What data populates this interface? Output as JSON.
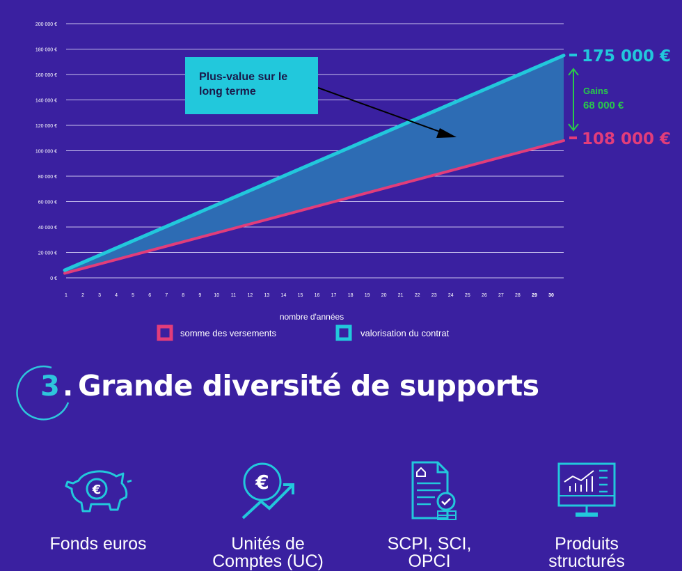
{
  "chart_data": {
    "type": "line",
    "xlabel": "nombre d'années",
    "ylabel": "",
    "ylim": [
      0,
      200000
    ],
    "y_ticks": [
      "0 €",
      "20 000 €",
      "40 000 €",
      "60 000 €",
      "80 000 €",
      "100 000 €",
      "120 000 €",
      "140 000 €",
      "160 000 €",
      "180 000 €",
      "200 000 €"
    ],
    "x": [
      1,
      2,
      3,
      4,
      5,
      6,
      7,
      8,
      9,
      10,
      11,
      12,
      13,
      14,
      15,
      16,
      17,
      18,
      19,
      20,
      21,
      22,
      23,
      24,
      25,
      26,
      27,
      28,
      29,
      30
    ],
    "series": [
      {
        "name": "somme des versements",
        "color": "#e23d7a",
        "start": 3600,
        "end": 108000
      },
      {
        "name": "valorisation du contrat",
        "color": "#22c8dc",
        "start": 6000,
        "end": 175000
      }
    ],
    "grid": true,
    "legend_position": "bottom",
    "annotation": {
      "text": "Plus-value sur le long terme"
    },
    "end_labels": {
      "top": "175 000 €",
      "bottom": "108 000 €"
    },
    "gains": {
      "title": "Gains",
      "value": "68 000 €"
    }
  },
  "section": {
    "number": "3",
    "dot": ".",
    "title": "Grande diversité de supports"
  },
  "supports": [
    {
      "label": "Fonds euros",
      "icon": "piggy-bank-icon"
    },
    {
      "label": "Unités de\nComptes (UC)",
      "icon": "euro-growth-icon"
    },
    {
      "label": "SCPI, SCI,\nOPCI",
      "icon": "document-check-icon"
    },
    {
      "label": "Produits\nstructurés",
      "icon": "monitor-chart-icon"
    }
  ],
  "colors": {
    "background": "#3a20a0",
    "cyan": "#22c8dc",
    "pink": "#e23d7a",
    "green": "#29c94a",
    "area": "#2d6cb4"
  }
}
